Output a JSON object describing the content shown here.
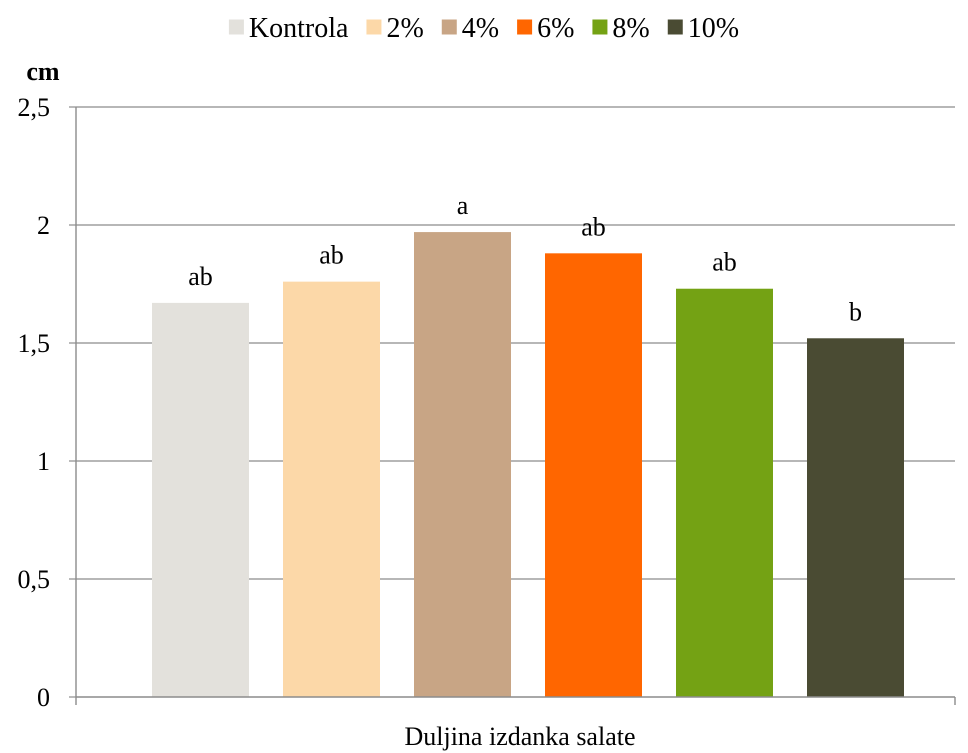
{
  "chart_data": {
    "type": "bar",
    "title": "",
    "xlabel": "Duljina izdanka salate",
    "ylabel": "cm",
    "ylim": [
      0,
      2.5
    ],
    "yticks": [
      0,
      0.5,
      1,
      1.5,
      2,
      2.5
    ],
    "ytick_labels": [
      "0",
      "0,5",
      "1",
      "1,5",
      "2",
      "2,5"
    ],
    "grid": true,
    "legend_position": "top",
    "categories": [
      "Duljina izdanka salate"
    ],
    "series": [
      {
        "name": "Kontrola",
        "color": "#E3E1DC",
        "values": [
          1.67
        ],
        "label": "ab"
      },
      {
        "name": "2%",
        "color": "#FCD8A8",
        "values": [
          1.76
        ],
        "label": "ab"
      },
      {
        "name": "4%",
        "color": "#C8A585",
        "values": [
          1.97
        ],
        "label": "a"
      },
      {
        "name": "6%",
        "color": "#FF6600",
        "values": [
          1.88
        ],
        "label": "ab"
      },
      {
        "name": "8%",
        "color": "#74A214",
        "values": [
          1.73
        ],
        "label": "ab"
      },
      {
        "name": "10%",
        "color": "#4A4B33",
        "values": [
          1.52
        ],
        "label": "b"
      }
    ]
  }
}
